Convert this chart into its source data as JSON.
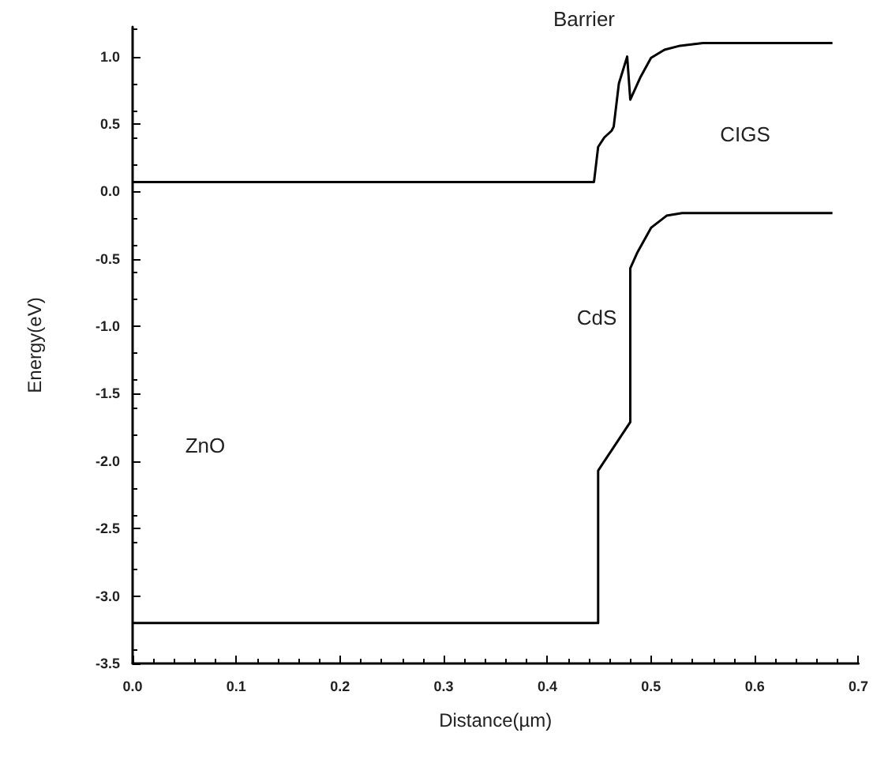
{
  "chart_data": {
    "type": "line",
    "xlabel": "Distance(µm)",
    "ylabel": "Energy(eV)",
    "xlim": [
      0,
      0.7
    ],
    "ylim": [
      -3.5,
      1.22
    ],
    "xticks": [
      {
        "value": 0,
        "label": "0.0"
      },
      {
        "value": 0.1,
        "label": "0.1"
      },
      {
        "value": 0.2,
        "label": "0.2"
      },
      {
        "value": 0.3,
        "label": "0.3"
      },
      {
        "value": 0.4,
        "label": "0.4"
      },
      {
        "value": 0.5,
        "label": "0.5"
      },
      {
        "value": 0.6,
        "label": "0.6"
      },
      {
        "value": 0.7,
        "label": "0.7"
      }
    ],
    "yticks": [
      {
        "value": -3.5,
        "label": "-3.5"
      },
      {
        "value": -3,
        "label": "-3.0"
      },
      {
        "value": -2.5,
        "label": "-2.5"
      },
      {
        "value": -2,
        "label": "-2.0"
      },
      {
        "value": -1.5,
        "label": "-1.5"
      },
      {
        "value": -1,
        "label": "-1.0"
      },
      {
        "value": -0.5,
        "label": "-0.5"
      },
      {
        "value": 0,
        "label": "0.0"
      },
      {
        "value": 0.5,
        "label": "0.5"
      },
      {
        "value": 1,
        "label": "1.0"
      }
    ],
    "grid": false,
    "marker": "none",
    "line_style": "solid",
    "series": [
      {
        "color": "#000000",
        "x": [
          0,
          0.445,
          0.449,
          0.455,
          0.462,
          0.464,
          0.469,
          0.477,
          0.48,
          0.49,
          0.5,
          0.513,
          0.528,
          0.55,
          0.675
        ],
        "values": [
          0.07,
          0.07,
          0.33,
          0.4,
          0.45,
          0.48,
          0.8,
          1.0,
          0.68,
          0.85,
          0.99,
          1.05,
          1.08,
          1.1,
          1.1
        ]
      },
      {
        "color": "#000000",
        "x": [
          0,
          0.449,
          0.449,
          0.48,
          0.48,
          0.48,
          0.487,
          0.5,
          0.515,
          0.53,
          0.675
        ],
        "values": [
          -3.2,
          -3.2,
          -2.07,
          -1.71,
          -0.57,
          -0.57,
          -0.45,
          -0.27,
          -0.18,
          -0.16,
          -0.16
        ]
      }
    ],
    "annotations": [
      "Barrier",
      "CIGS",
      "CdS",
      "ZnO"
    ]
  }
}
